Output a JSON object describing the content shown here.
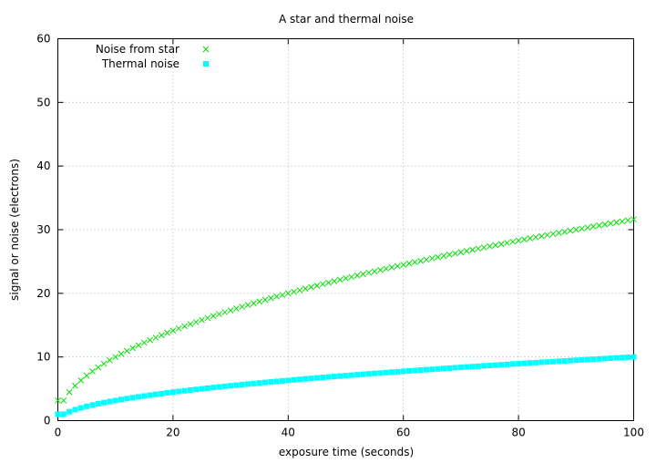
{
  "chart_data": {
    "type": "scatter",
    "title": "A star and thermal noise",
    "xlabel": "exposure time (seconds)",
    "ylabel": "signal or noise (electrons)",
    "xlim": [
      0,
      100
    ],
    "ylim": [
      0,
      60
    ],
    "x_ticks": [
      "0",
      "20",
      "40",
      "60",
      "80",
      "100"
    ],
    "y_ticks": [
      "0",
      "10",
      "20",
      "30",
      "40",
      "50",
      "60"
    ],
    "grid": true,
    "legend_position": "top-left",
    "series": [
      {
        "name": "Noise from star",
        "color": "#00e000",
        "marker": "x",
        "formula": "sqrt(10*t)",
        "x": [
          0,
          1,
          2,
          3,
          4,
          5,
          6,
          7,
          8,
          9,
          10,
          11,
          12,
          13,
          14,
          15,
          16,
          17,
          18,
          19,
          20,
          21,
          22,
          23,
          24,
          25,
          26,
          27,
          28,
          29,
          30,
          31,
          32,
          33,
          34,
          35,
          36,
          37,
          38,
          39,
          40,
          41,
          42,
          43,
          44,
          45,
          46,
          47,
          48,
          49,
          50,
          51,
          52,
          53,
          54,
          55,
          56,
          57,
          58,
          59,
          60,
          61,
          62,
          63,
          64,
          65,
          66,
          67,
          68,
          69,
          70,
          71,
          72,
          73,
          74,
          75,
          76,
          77,
          78,
          79,
          80,
          81,
          82,
          83,
          84,
          85,
          86,
          87,
          88,
          89,
          90,
          91,
          92,
          93,
          94,
          95,
          96,
          97,
          98,
          99,
          100
        ],
        "y": [
          3.16,
          3.16,
          4.47,
          5.48,
          6.32,
          7.07,
          7.75,
          8.37,
          8.94,
          9.49,
          10.0,
          10.49,
          10.95,
          11.4,
          11.83,
          12.25,
          12.65,
          13.04,
          13.42,
          13.78,
          14.14,
          14.49,
          14.83,
          15.17,
          15.49,
          15.81,
          16.12,
          16.43,
          16.73,
          17.03,
          17.32,
          17.61,
          17.89,
          18.17,
          18.44,
          18.71,
          18.97,
          19.24,
          19.49,
          19.75,
          20.0,
          20.25,
          20.49,
          20.74,
          20.98,
          21.21,
          21.45,
          21.68,
          21.91,
          22.14,
          22.36,
          22.58,
          22.8,
          23.02,
          23.24,
          23.45,
          23.66,
          23.87,
          24.08,
          24.29,
          24.49,
          24.7,
          24.9,
          25.1,
          25.3,
          25.5,
          25.69,
          25.88,
          26.08,
          26.27,
          26.46,
          26.65,
          26.83,
          27.02,
          27.2,
          27.39,
          27.57,
          27.75,
          27.93,
          28.11,
          28.28,
          28.46,
          28.64,
          28.81,
          28.98,
          29.15,
          29.33,
          29.5,
          29.66,
          29.83,
          30.0,
          30.17,
          30.33,
          30.5,
          30.66,
          30.82,
          30.98,
          31.14,
          31.3,
          31.46,
          31.62
        ]
      },
      {
        "name": "Thermal noise",
        "color": "#00ffff",
        "marker": "square",
        "formula": "sqrt(t)",
        "x": [
          0,
          1,
          2,
          3,
          4,
          5,
          6,
          7,
          8,
          9,
          10,
          11,
          12,
          13,
          14,
          15,
          16,
          17,
          18,
          19,
          20,
          21,
          22,
          23,
          24,
          25,
          26,
          27,
          28,
          29,
          30,
          31,
          32,
          33,
          34,
          35,
          36,
          37,
          38,
          39,
          40,
          41,
          42,
          43,
          44,
          45,
          46,
          47,
          48,
          49,
          50,
          51,
          52,
          53,
          54,
          55,
          56,
          57,
          58,
          59,
          60,
          61,
          62,
          63,
          64,
          65,
          66,
          67,
          68,
          69,
          70,
          71,
          72,
          73,
          74,
          75,
          76,
          77,
          78,
          79,
          80,
          81,
          82,
          83,
          84,
          85,
          86,
          87,
          88,
          89,
          90,
          91,
          92,
          93,
          94,
          95,
          96,
          97,
          98,
          99,
          100
        ],
        "y": [
          1.0,
          1.0,
          1.41,
          1.73,
          2.0,
          2.24,
          2.45,
          2.65,
          2.83,
          3.0,
          3.16,
          3.32,
          3.46,
          3.61,
          3.74,
          3.87,
          4.0,
          4.12,
          4.24,
          4.36,
          4.47,
          4.58,
          4.69,
          4.8,
          4.9,
          5.0,
          5.1,
          5.2,
          5.29,
          5.39,
          5.48,
          5.57,
          5.66,
          5.74,
          5.83,
          5.92,
          6.0,
          6.08,
          6.16,
          6.24,
          6.32,
          6.4,
          6.48,
          6.56,
          6.63,
          6.71,
          6.78,
          6.86,
          6.93,
          7.0,
          7.07,
          7.14,
          7.21,
          7.28,
          7.35,
          7.42,
          7.48,
          7.55,
          7.62,
          7.68,
          7.75,
          7.81,
          7.87,
          7.94,
          8.0,
          8.06,
          8.12,
          8.19,
          8.25,
          8.31,
          8.37,
          8.43,
          8.49,
          8.54,
          8.6,
          8.66,
          8.72,
          8.77,
          8.83,
          8.89,
          8.94,
          9.0,
          9.06,
          9.11,
          9.17,
          9.22,
          9.27,
          9.33,
          9.38,
          9.43,
          9.49,
          9.54,
          9.59,
          9.64,
          9.7,
          9.75,
          9.8,
          9.85,
          9.9,
          9.95,
          10.0
        ]
      }
    ]
  }
}
